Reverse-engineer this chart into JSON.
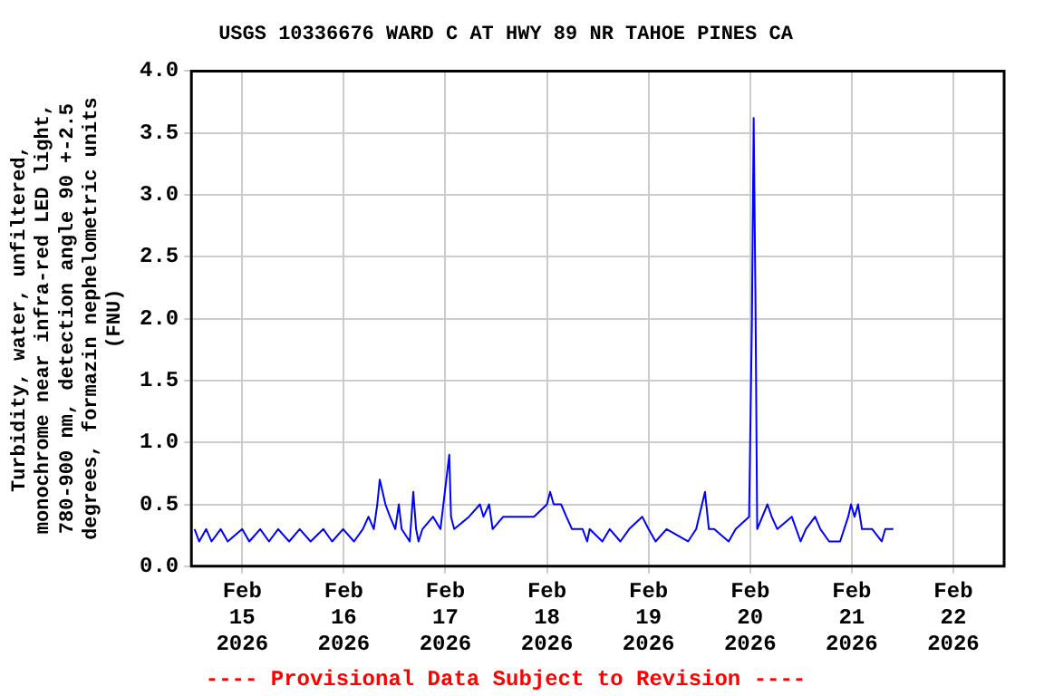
{
  "chart_data": {
    "type": "line",
    "title": "USGS 10336676 WARD C AT HWY 89 NR TAHOE PINES CA",
    "ylabel": "Turbidity, water, unfiltered, monochrome near infra-red LED light, 780-900 nm, detection angle 90 +-2.5 degrees, formazin nephelometric units (FNU)",
    "annotations": [
      "---- Provisional Data Subject to Revision ----"
    ],
    "x": [
      "2026-02-14T12:45",
      "2026-02-14T13:50",
      "2026-02-14T15:30",
      "2026-02-14T16:45",
      "2026-02-14T18:55",
      "2026-02-14T20:35",
      "2026-02-15T00:00",
      "2026-02-15T01:40",
      "2026-02-15T04:15",
      "2026-02-15T06:20",
      "2026-02-15T08:30",
      "2026-02-15T11:05",
      "2026-02-15T13:35",
      "2026-02-15T16:10",
      "2026-02-15T19:10",
      "2026-02-15T21:15",
      "2026-02-15T23:50",
      "2026-02-16T02:25",
      "2026-02-16T04:30",
      "2026-02-16T05:50",
      "2026-02-16T07:05",
      "2026-02-16T07:55",
      "2026-02-16T08:30",
      "2026-02-16T09:10",
      "2026-02-16T09:50",
      "2026-02-16T10:55",
      "2026-02-16T12:10",
      "2026-02-16T13:00",
      "2026-02-16T13:40",
      "2026-02-16T15:35",
      "2026-02-16T16:25",
      "2026-02-16T17:05",
      "2026-02-16T17:40",
      "2026-02-16T18:35",
      "2026-02-16T21:05",
      "2026-02-16T22:50",
      "2026-02-17T00:55",
      "2026-02-17T01:20",
      "2026-02-17T02:05",
      "2026-02-17T05:35",
      "2026-02-17T08:10",
      "2026-02-17T09:00",
      "2026-02-17T10:20",
      "2026-02-17T11:10",
      "2026-02-17T13:40",
      "2026-02-17T17:55",
      "2026-02-17T20:55",
      "2026-02-18T00:00",
      "2026-02-18T00:45",
      "2026-02-18T01:35",
      "2026-02-18T03:20",
      "2026-02-18T04:35",
      "2026-02-18T05:55",
      "2026-02-18T08:25",
      "2026-02-18T09:30",
      "2026-02-18T10:05",
      "2026-02-18T13:05",
      "2026-02-18T14:50",
      "2026-02-18T17:20",
      "2026-02-18T19:25",
      "2026-02-18T22:30",
      "2026-02-19T00:00",
      "2026-02-19T01:40",
      "2026-02-19T04:15",
      "2026-02-19T09:20",
      "2026-02-19T11:15",
      "2026-02-19T13:20",
      "2026-02-19T14:15",
      "2026-02-19T15:30",
      "2026-02-19T18:55",
      "2026-02-19T20:35",
      "2026-02-19T23:45",
      "2026-02-20T00:25",
      "2026-02-20T00:50",
      "2026-02-20T01:15",
      "2026-02-20T01:40",
      "2026-02-20T04:05",
      "2026-02-20T05:05",
      "2026-02-20T06:25",
      "2026-02-20T09:50",
      "2026-02-20T11:55",
      "2026-02-20T13:10",
      "2026-02-20T15:20",
      "2026-02-20T16:35",
      "2026-02-20T18:40",
      "2026-02-20T21:15",
      "2026-02-20T23:10",
      "2026-02-20T23:50",
      "2026-02-21T00:40",
      "2026-02-21T01:30",
      "2026-02-21T02:25",
      "2026-02-21T04:50",
      "2026-02-21T07:05",
      "2026-02-21T07:55",
      "2026-02-21T09:50"
    ],
    "series": [
      {
        "color": "#0000ff",
        "values": [
          0.3,
          0.2,
          0.3,
          0.2,
          0.3,
          0.2,
          0.3,
          0.2,
          0.3,
          0.2,
          0.3,
          0.2,
          0.3,
          0.2,
          0.3,
          0.2,
          0.3,
          0.2,
          0.3,
          0.4,
          0.3,
          0.5,
          0.7,
          0.6,
          0.5,
          0.4,
          0.3,
          0.5,
          0.3,
          0.2,
          0.6,
          0.3,
          0.2,
          0.3,
          0.4,
          0.3,
          0.9,
          0.4,
          0.3,
          0.4,
          0.5,
          0.4,
          0.5,
          0.3,
          0.4,
          0.4,
          0.4,
          0.5,
          0.6,
          0.5,
          0.5,
          0.4,
          0.3,
          0.3,
          0.2,
          0.3,
          0.2,
          0.3,
          0.2,
          0.3,
          0.4,
          0.3,
          0.2,
          0.3,
          0.2,
          0.3,
          0.6,
          0.3,
          0.3,
          0.2,
          0.3,
          0.4,
          1.97,
          3.62,
          2.18,
          0.3,
          0.5,
          0.4,
          0.3,
          0.4,
          0.2,
          0.3,
          0.4,
          0.3,
          0.2,
          0.2,
          0.4,
          0.5,
          0.4,
          0.5,
          0.3,
          0.3,
          0.2,
          0.3,
          0.3
        ]
      }
    ],
    "xlim": [
      "2026-02-14T12:00",
      "2026-02-22T12:00"
    ],
    "xticks": [
      {
        "value": "2026-02-15",
        "label": "Feb\n15\n2026"
      },
      {
        "value": "2026-02-16",
        "label": "Feb\n16\n2026"
      },
      {
        "value": "2026-02-17",
        "label": "Feb\n17\n2026"
      },
      {
        "value": "2026-02-18",
        "label": "Feb\n18\n2026"
      },
      {
        "value": "2026-02-19",
        "label": "Feb\n19\n2026"
      },
      {
        "value": "2026-02-20",
        "label": "Feb\n20\n2026"
      },
      {
        "value": "2026-02-21",
        "label": "Feb\n21\n2026"
      },
      {
        "value": "2026-02-22",
        "label": "Feb\n22\n2026"
      }
    ],
    "ylim": [
      0,
      4
    ],
    "yticks": [
      {
        "value": 0,
        "label": "0.0"
      },
      {
        "value": 0.5,
        "label": "0.5"
      },
      {
        "value": 1,
        "label": "1.0"
      },
      {
        "value": 1.5,
        "label": "1.5"
      },
      {
        "value": 2,
        "label": "2.0"
      },
      {
        "value": 2.5,
        "label": "2.5"
      },
      {
        "value": 3,
        "label": "3.0"
      },
      {
        "value": 3.5,
        "label": "3.5"
      },
      {
        "value": 4,
        "label": "4.0"
      }
    ],
    "grid": true,
    "legend": false,
    "marker": "none",
    "line_style": "solid"
  }
}
